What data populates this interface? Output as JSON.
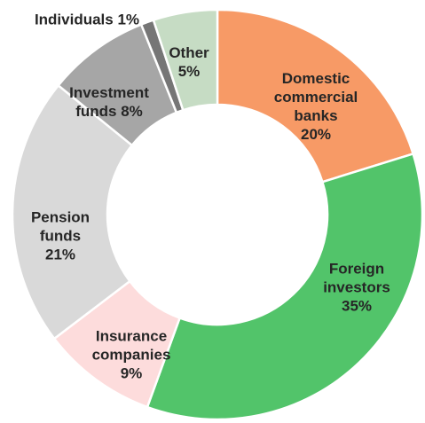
{
  "chart_data": {
    "type": "donut",
    "categories": [
      "Domestic commercial banks",
      "Foreign investors",
      "Insurance companies",
      "Pension funds",
      "Investment funds",
      "Individuals",
      "Other"
    ],
    "values": [
      20,
      35,
      9,
      21,
      8,
      1,
      5
    ],
    "value_labels": [
      "20%",
      "35%",
      "9%",
      "21%",
      "8%",
      "1%",
      "5%"
    ],
    "colors": [
      "#f79a66",
      "#52c46a",
      "#fddcdc",
      "#d9d9d9",
      "#a6a6a6",
      "#767676",
      "#c6dcc4"
    ]
  }
}
